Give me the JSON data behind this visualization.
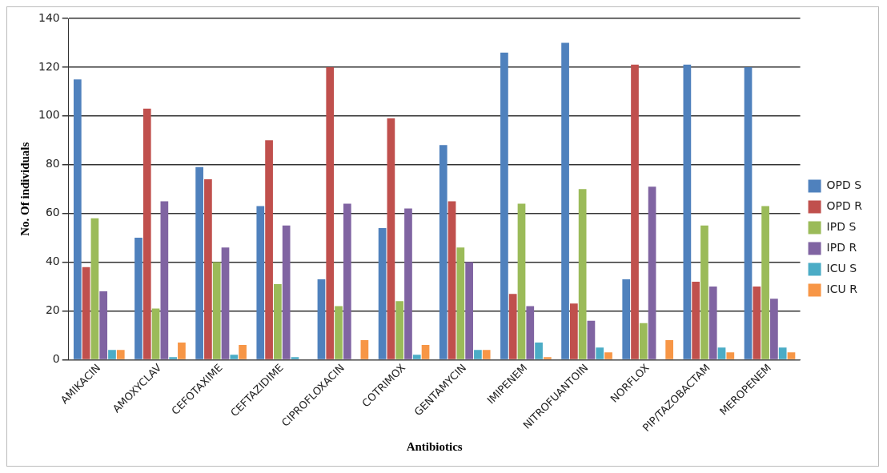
{
  "chart_data": {
    "type": "bar",
    "xlabel": "Antibiotics",
    "ylabel": "No. Of individuals",
    "categories": [
      "AMIKACIN",
      "AMOXYCLAV",
      "CEFOTAXIME",
      "CEFTAZIDIME",
      "CIPROFLOXACIN",
      "COTRIMOX",
      "GENTAMYCIN",
      "IMIPENEM",
      "NITROFUANTOIN",
      "NORFLOX",
      "PIP/TAZOBACTAM",
      "MEROPENEM"
    ],
    "series": [
      {
        "name": "OPD S",
        "color": "#4f81bd",
        "values": [
          115,
          50,
          79,
          63,
          33,
          54,
          88,
          126,
          130,
          33,
          121,
          120
        ]
      },
      {
        "name": "OPD R",
        "color": "#c0504d",
        "values": [
          38,
          103,
          74,
          90,
          120,
          99,
          65,
          27,
          23,
          121,
          32,
          30
        ]
      },
      {
        "name": "IPD S",
        "color": "#9bbb59",
        "values": [
          58,
          21,
          40,
          31,
          22,
          24,
          46,
          64,
          70,
          15,
          55,
          63
        ]
      },
      {
        "name": "IPD R",
        "color": "#8064a2",
        "values": [
          28,
          65,
          46,
          55,
          64,
          62,
          40,
          22,
          16,
          71,
          30,
          25
        ]
      },
      {
        "name": "ICU S",
        "color": "#4bacc6",
        "values": [
          4,
          1,
          2,
          1,
          0,
          2,
          4,
          7,
          5,
          0,
          5,
          5
        ]
      },
      {
        "name": "ICU R",
        "color": "#f79646",
        "values": [
          4,
          7,
          6,
          0,
          8,
          6,
          4,
          1,
          3,
          8,
          3,
          3
        ]
      }
    ],
    "ylim": [
      0,
      140
    ],
    "yticks": [
      0,
      20,
      40,
      60,
      80,
      100,
      120,
      140
    ],
    "grid": "y",
    "legend": "right"
  }
}
